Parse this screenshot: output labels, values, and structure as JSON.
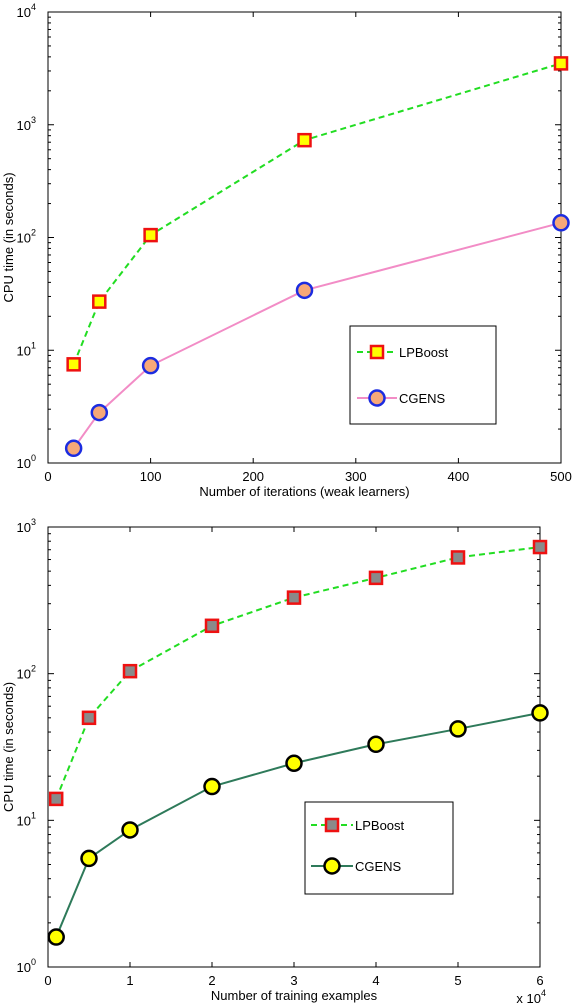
{
  "chart_data": [
    {
      "type": "line",
      "yscale": "log",
      "xlabel": "Number of iterations (weak learners)",
      "ylabel": "CPU time (in seconds)",
      "xlim": [
        0,
        500
      ],
      "ylim": [
        1,
        10000
      ],
      "xticks": [
        "0",
        "100",
        "200",
        "300",
        "400",
        "500"
      ],
      "yticks": [
        {
          "base": "10",
          "exp": "0"
        },
        {
          "base": "10",
          "exp": "1"
        },
        {
          "base": "10",
          "exp": "2"
        },
        {
          "base": "10",
          "exp": "3"
        },
        {
          "base": "10",
          "exp": "4"
        }
      ],
      "legend_position": "lower-right",
      "series": [
        {
          "name": "LPBoost",
          "style": "dashed",
          "marker": "square",
          "line_color": "#22dd22",
          "marker_fill": "#ffff00",
          "marker_edge": "#ee1111",
          "x": [
            25,
            50,
            100,
            250,
            500
          ],
          "y": [
            7.5,
            27,
            105,
            730,
            3500
          ]
        },
        {
          "name": "CGENS",
          "style": "solid",
          "marker": "circle",
          "line_color": "#f28cc6",
          "marker_fill": "#f7a878",
          "marker_edge": "#1c2ce0",
          "x": [
            25,
            50,
            100,
            250,
            500
          ],
          "y": [
            1.35,
            2.8,
            7.3,
            34,
            135
          ]
        }
      ]
    },
    {
      "type": "line",
      "yscale": "log",
      "xlabel": "Number of training examples",
      "ylabel": "CPU time (in seconds)",
      "xlim": [
        0,
        6
      ],
      "ylim": [
        1,
        1000
      ],
      "x_multiplier": {
        "base": "x 10",
        "exp": "4"
      },
      "xticks": [
        "0",
        "1",
        "2",
        "3",
        "4",
        "5",
        "6"
      ],
      "yticks": [
        {
          "base": "10",
          "exp": "0"
        },
        {
          "base": "10",
          "exp": "1"
        },
        {
          "base": "10",
          "exp": "2"
        },
        {
          "base": "10",
          "exp": "3"
        }
      ],
      "legend_position": "lower-right",
      "series": [
        {
          "name": "LPBoost",
          "style": "dashed",
          "marker": "square",
          "line_color": "#22dd22",
          "marker_fill": "#8a8a8a",
          "marker_edge": "#ee1111",
          "x": [
            0.1,
            0.5,
            1,
            2,
            3,
            4,
            5,
            6
          ],
          "y": [
            14,
            50,
            104,
            212,
            330,
            450,
            620,
            730
          ]
        },
        {
          "name": "CGENS",
          "style": "solid",
          "marker": "circle",
          "line_color": "#2e7a5a",
          "marker_fill": "#ffff00",
          "marker_edge": "#000000",
          "x": [
            0.1,
            0.5,
            1,
            2,
            3,
            4,
            5,
            6
          ],
          "y": [
            1.6,
            5.5,
            8.6,
            17,
            24.5,
            33,
            42,
            54
          ]
        }
      ]
    }
  ]
}
